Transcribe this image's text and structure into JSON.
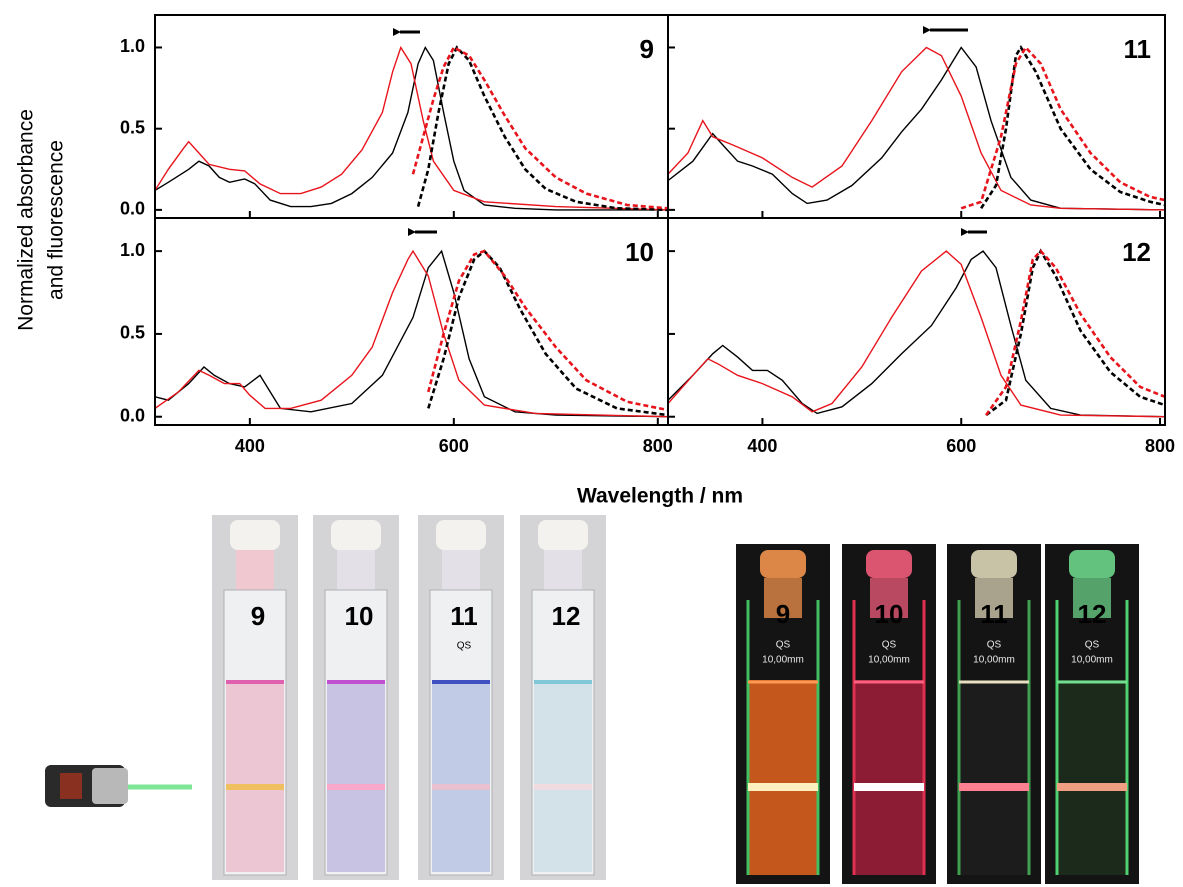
{
  "figure": {
    "ylabel": [
      "Normalized absorbance",
      "and fluorescence"
    ],
    "xlabel": "Wavelength / nm"
  },
  "chart_data": [
    {
      "type": "line",
      "title": "9",
      "xlim": [
        307,
        810
      ],
      "ylim": [
        -0.05,
        1.2
      ],
      "xticks": [
        400,
        600,
        800
      ],
      "yticks": [
        0.0,
        0.5,
        1.0
      ],
      "show_xtick_labels": false,
      "show_ytick_labels": true,
      "series": [
        {
          "color": "#000000",
          "dashed": false,
          "x": [
            307,
            320,
            340,
            350,
            360,
            370,
            380,
            395,
            405,
            420,
            440,
            460,
            480,
            500,
            520,
            540,
            555,
            565,
            572,
            580,
            590,
            600,
            610,
            630,
            660,
            700,
            810
          ],
          "values": [
            0.12,
            0.17,
            0.25,
            0.3,
            0.27,
            0.2,
            0.17,
            0.19,
            0.16,
            0.06,
            0.02,
            0.02,
            0.04,
            0.1,
            0.2,
            0.35,
            0.6,
            0.9,
            1.0,
            0.92,
            0.6,
            0.3,
            0.12,
            0.03,
            0.01,
            0,
            0
          ]
        },
        {
          "color": "#e8141c",
          "dashed": false,
          "x": [
            307,
            320,
            335,
            340,
            350,
            360,
            380,
            395,
            410,
            430,
            450,
            470,
            490,
            510,
            530,
            540,
            548,
            558,
            570,
            580,
            600,
            630,
            700,
            810
          ],
          "values": [
            0.12,
            0.25,
            0.38,
            0.42,
            0.35,
            0.28,
            0.25,
            0.24,
            0.16,
            0.1,
            0.1,
            0.14,
            0.22,
            0.37,
            0.6,
            0.85,
            1.0,
            0.9,
            0.55,
            0.3,
            0.12,
            0.05,
            0.02,
            0
          ]
        },
        {
          "color": "#000000",
          "dashed": true,
          "x": [
            565,
            575,
            585,
            595,
            603,
            615,
            630,
            650,
            670,
            690,
            720,
            760,
            810
          ],
          "values": [
            0.02,
            0.25,
            0.6,
            0.9,
            1.0,
            0.92,
            0.7,
            0.45,
            0.25,
            0.13,
            0.05,
            0.01,
            0
          ]
        },
        {
          "color": "#e8141c",
          "dashed": true,
          "x": [
            560,
            570,
            580,
            590,
            600,
            615,
            630,
            650,
            670,
            700,
            730,
            770,
            810
          ],
          "values": [
            0.22,
            0.45,
            0.68,
            0.88,
            1.0,
            0.95,
            0.8,
            0.58,
            0.38,
            0.2,
            0.1,
            0.03,
            0.01
          ]
        }
      ]
    },
    {
      "type": "line",
      "title": "11",
      "xlim": [
        305,
        805
      ],
      "ylim": [
        -0.05,
        1.2
      ],
      "xticks": [
        400,
        600,
        800
      ],
      "yticks": [
        0.0,
        0.5,
        1.0
      ],
      "show_xtick_labels": false,
      "show_ytick_labels": false,
      "series": [
        {
          "color": "#000000",
          "dashed": false,
          "x": [
            305,
            330,
            350,
            360,
            375,
            390,
            410,
            430,
            445,
            465,
            490,
            520,
            540,
            560,
            580,
            600,
            615,
            630,
            650,
            670,
            700,
            805
          ],
          "values": [
            0.18,
            0.3,
            0.47,
            0.4,
            0.3,
            0.27,
            0.22,
            0.1,
            0.04,
            0.06,
            0.15,
            0.32,
            0.48,
            0.62,
            0.8,
            1.0,
            0.88,
            0.55,
            0.2,
            0.06,
            0.01,
            0
          ]
        },
        {
          "color": "#e8141c",
          "dashed": false,
          "x": [
            305,
            325,
            340,
            350,
            370,
            400,
            430,
            450,
            480,
            510,
            540,
            565,
            580,
            600,
            620,
            640,
            670,
            700,
            805
          ],
          "values": [
            0.22,
            0.35,
            0.55,
            0.45,
            0.4,
            0.32,
            0.2,
            0.14,
            0.27,
            0.55,
            0.85,
            1.0,
            0.95,
            0.7,
            0.35,
            0.12,
            0.03,
            0.01,
            0
          ]
        },
        {
          "color": "#000000",
          "dashed": true,
          "x": [
            620,
            635,
            645,
            655,
            660,
            675,
            700,
            730,
            760,
            790,
            805
          ],
          "values": [
            0.01,
            0.15,
            0.5,
            0.95,
            1.0,
            0.85,
            0.5,
            0.25,
            0.11,
            0.05,
            0.03
          ]
        },
        {
          "color": "#e8141c",
          "dashed": true,
          "x": [
            600,
            620,
            640,
            655,
            665,
            680,
            700,
            730,
            760,
            790,
            805
          ],
          "values": [
            0.01,
            0.05,
            0.45,
            0.9,
            1.0,
            0.9,
            0.62,
            0.35,
            0.17,
            0.08,
            0.06
          ]
        }
      ]
    },
    {
      "type": "line",
      "title": "10",
      "xlim": [
        307,
        810
      ],
      "ylim": [
        -0.05,
        1.2
      ],
      "xticks": [
        400,
        600,
        800
      ],
      "yticks": [
        0.0,
        0.5,
        1.0
      ],
      "show_xtick_labels": true,
      "show_ytick_labels": true,
      "series": [
        {
          "color": "#000000",
          "dashed": false,
          "x": [
            307,
            320,
            340,
            355,
            365,
            380,
            395,
            410,
            420,
            430,
            460,
            500,
            530,
            560,
            575,
            588,
            600,
            615,
            630,
            660,
            700,
            810
          ],
          "values": [
            0.12,
            0.1,
            0.2,
            0.3,
            0.25,
            0.2,
            0.18,
            0.25,
            0.15,
            0.05,
            0.03,
            0.08,
            0.25,
            0.6,
            0.9,
            1.0,
            0.75,
            0.35,
            0.12,
            0.03,
            0.01,
            0
          ]
        },
        {
          "color": "#e8141c",
          "dashed": false,
          "x": [
            307,
            330,
            350,
            360,
            375,
            390,
            400,
            415,
            440,
            470,
            500,
            520,
            540,
            555,
            560,
            575,
            590,
            605,
            630,
            680,
            810
          ],
          "values": [
            0.05,
            0.15,
            0.28,
            0.25,
            0.2,
            0.2,
            0.13,
            0.05,
            0.05,
            0.1,
            0.25,
            0.42,
            0.75,
            0.95,
            1.0,
            0.85,
            0.5,
            0.22,
            0.07,
            0.02,
            0
          ]
        },
        {
          "color": "#000000",
          "dashed": true,
          "x": [
            575,
            590,
            605,
            620,
            630,
            645,
            665,
            690,
            720,
            760,
            810
          ],
          "values": [
            0.05,
            0.35,
            0.72,
            0.95,
            1.0,
            0.9,
            0.65,
            0.38,
            0.17,
            0.05,
            0.01
          ]
        },
        {
          "color": "#e8141c",
          "dashed": true,
          "x": [
            575,
            590,
            605,
            620,
            630,
            650,
            670,
            700,
            730,
            770,
            810
          ],
          "values": [
            0.15,
            0.5,
            0.82,
            0.98,
            1.0,
            0.85,
            0.66,
            0.42,
            0.22,
            0.09,
            0.04
          ]
        }
      ]
    },
    {
      "type": "line",
      "title": "12",
      "xlim": [
        305,
        805
      ],
      "ylim": [
        -0.05,
        1.2
      ],
      "xticks": [
        400,
        600,
        800
      ],
      "yticks": [
        0.0,
        0.5,
        1.0
      ],
      "show_xtick_labels": true,
      "show_ytick_labels": false,
      "series": [
        {
          "color": "#000000",
          "dashed": false,
          "x": [
            305,
            330,
            350,
            360,
            375,
            390,
            405,
            420,
            440,
            455,
            480,
            510,
            540,
            570,
            595,
            610,
            622,
            635,
            650,
            665,
            690,
            720,
            805
          ],
          "values": [
            0.1,
            0.25,
            0.38,
            0.43,
            0.36,
            0.28,
            0.28,
            0.22,
            0.08,
            0.02,
            0.06,
            0.2,
            0.38,
            0.55,
            0.78,
            0.95,
            1.0,
            0.9,
            0.55,
            0.22,
            0.05,
            0.01,
            0
          ]
        },
        {
          "color": "#e8141c",
          "dashed": false,
          "x": [
            305,
            330,
            345,
            355,
            375,
            400,
            430,
            450,
            470,
            500,
            530,
            560,
            585,
            600,
            620,
            640,
            660,
            700,
            805
          ],
          "values": [
            0.08,
            0.25,
            0.35,
            0.32,
            0.25,
            0.2,
            0.12,
            0.03,
            0.08,
            0.3,
            0.6,
            0.88,
            1.0,
            0.92,
            0.6,
            0.25,
            0.07,
            0.01,
            0
          ]
        },
        {
          "color": "#000000",
          "dashed": true,
          "x": [
            625,
            645,
            660,
            672,
            680,
            695,
            720,
            750,
            780,
            805
          ],
          "values": [
            0.01,
            0.1,
            0.5,
            0.9,
            1.0,
            0.85,
            0.52,
            0.27,
            0.12,
            0.07
          ]
        },
        {
          "color": "#e8141c",
          "dashed": true,
          "x": [
            625,
            645,
            660,
            672,
            680,
            695,
            720,
            750,
            780,
            805
          ],
          "values": [
            0.01,
            0.18,
            0.58,
            0.95,
            1.0,
            0.9,
            0.62,
            0.36,
            0.18,
            0.12
          ]
        }
      ]
    }
  ],
  "photos": {
    "left_labels": [
      "9",
      "10",
      "11",
      "12"
    ],
    "right_labels": [
      "9",
      "10",
      "11",
      "12"
    ],
    "cell_mark": "QS",
    "cell_size": "10,00mm"
  }
}
